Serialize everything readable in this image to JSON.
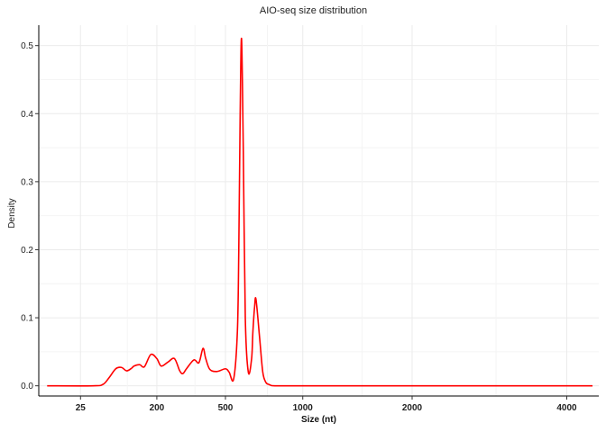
{
  "chart_data": {
    "type": "line",
    "title": "AIO-seq size distribution",
    "xlabel": "Size (nt)",
    "ylabel": "Density",
    "xscale": "sqrt",
    "xlim": [
      0,
      4500
    ],
    "ylim": [
      -0.015,
      0.53
    ],
    "x_ticks": [
      {
        "value": 25,
        "label": "25"
      },
      {
        "value": 200,
        "label": "200"
      },
      {
        "value": 500,
        "label": "500"
      },
      {
        "value": 1000,
        "label": "1000"
      },
      {
        "value": 2000,
        "label": "2000"
      },
      {
        "value": 4000,
        "label": "4000"
      }
    ],
    "y_ticks": [
      {
        "value": 0.0,
        "label": "0.0"
      },
      {
        "value": 0.1,
        "label": "0.1"
      },
      {
        "value": 0.2,
        "label": "0.2"
      },
      {
        "value": 0.3,
        "label": "0.3"
      },
      {
        "value": 0.4,
        "label": "0.4"
      },
      {
        "value": 0.5,
        "label": "0.5"
      }
    ],
    "grid": true,
    "colors": {
      "line": "#ff0000",
      "grid": "#ebebeb",
      "axis": "#000000"
    },
    "series": [
      {
        "x": [
          1,
          42,
          59,
          71,
          85,
          98,
          111,
          124,
          130,
          146,
          160,
          180,
          200,
          215,
          240,
          264,
          285,
          298,
          313,
          345,
          368,
          387,
          400,
          420,
          455,
          500,
          520,
          545,
          566,
          574,
          582,
          590,
          600,
          612,
          630,
          650,
          658,
          668,
          677,
          700,
          720,
          740,
          760,
          770,
          800,
          1000,
          2000,
          4400
        ],
        "y": [
          0,
          0,
          0.002,
          0.012,
          0.025,
          0.027,
          0.022,
          0.026,
          0.029,
          0.031,
          0.028,
          0.046,
          0.04,
          0.029,
          0.035,
          0.04,
          0.022,
          0.018,
          0.025,
          0.038,
          0.034,
          0.055,
          0.04,
          0.024,
          0.021,
          0.025,
          0.02,
          0.01,
          0.08,
          0.2,
          0.4,
          0.51,
          0.35,
          0.1,
          0.02,
          0.04,
          0.08,
          0.115,
          0.127,
          0.07,
          0.02,
          0.005,
          0.002,
          0.001,
          0,
          0,
          0,
          0
        ]
      }
    ]
  }
}
